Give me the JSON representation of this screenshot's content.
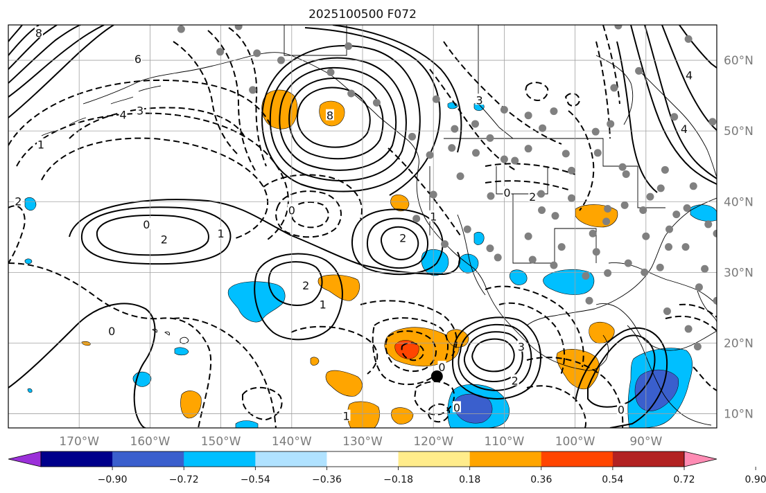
{
  "title": "2025100500 F072",
  "map": {
    "projection": "equirectangular",
    "lon_range": [
      -180,
      -80
    ],
    "lat_range": [
      8,
      65
    ],
    "lon_labels": [
      "170°W",
      "160°W",
      "150°W",
      "140°W",
      "130°W",
      "120°W",
      "110°W",
      "100°W",
      "90°W"
    ],
    "lat_labels": [
      "60°N",
      "50°N",
      "40°N",
      "30°N",
      "20°N",
      "10°N"
    ],
    "grid": true,
    "marker": {
      "lon": -119.5,
      "lat": 15.3,
      "color": "#000000"
    },
    "colors": {
      "positive_contour": "#000000",
      "negative_contour": "#000000",
      "station_marker": "#808080",
      "gridline": "#a0a0a0"
    }
  },
  "colorbar": {
    "ticks": [
      "−0.90",
      "−0.72",
      "−0.54",
      "−0.36",
      "−0.18",
      "0.18",
      "0.36",
      "0.54",
      "0.72",
      "0.90"
    ],
    "colors": [
      "#9b30d9",
      "#00008b",
      "#3a5fcd",
      "#00bfff",
      "#b0e2ff",
      "#ffffff",
      "#ffec8b",
      "#ffa500",
      "#ff4500",
      "#b22222",
      "#ff8cb4"
    ]
  },
  "contour_labels": [
    {
      "text": "0",
      "lon": -160.5,
      "lat": 36.7
    },
    {
      "text": "2",
      "lon": -158,
      "lat": 34.6
    },
    {
      "text": "1",
      "lon": -150,
      "lat": 35.4
    },
    {
      "text": "2",
      "lon": -138,
      "lat": 28.1
    },
    {
      "text": "1",
      "lon": -135.6,
      "lat": 25.4
    },
    {
      "text": "0",
      "lon": -140,
      "lat": 38.7
    },
    {
      "text": "2",
      "lon": -124.3,
      "lat": 34.8
    },
    {
      "text": "1",
      "lon": -120,
      "lat": 37.8
    },
    {
      "text": "8",
      "lon": -134.6,
      "lat": 52.1
    },
    {
      "text": "3",
      "lon": -107.6,
      "lat": 19.4
    },
    {
      "text": "2",
      "lon": -108.5,
      "lat": 14.6
    },
    {
      "text": "0",
      "lon": -118.8,
      "lat": 16.5
    },
    {
      "text": "0",
      "lon": -116.7,
      "lat": 10.8
    },
    {
      "text": "0",
      "lon": -93.5,
      "lat": 10.5
    },
    {
      "text": "0",
      "lon": -165.4,
      "lat": 21.6
    },
    {
      "text": "2",
      "lon": -106,
      "lat": 40.6
    },
    {
      "text": "0",
      "lon": -109.6,
      "lat": 41.2
    },
    {
      "text": "4",
      "lon": -83.9,
      "lat": 57.8
    },
    {
      "text": "4",
      "lon": -163.8,
      "lat": 52.2
    },
    {
      "text": "6",
      "lon": -161.7,
      "lat": 60.1
    },
    {
      "text": "8",
      "lon": -175.7,
      "lat": 63.8
    },
    {
      "text": "3",
      "lon": -161.4,
      "lat": 52.8
    },
    {
      "text": "1",
      "lon": -175.4,
      "lat": 48.0
    },
    {
      "text": "3",
      "lon": -113.5,
      "lat": 54.3
    },
    {
      "text": "4",
      "lon": -84.6,
      "lat": 50.2
    },
    {
      "text": "1",
      "lon": -132.3,
      "lat": 9.6
    },
    {
      "text": "2",
      "lon": -178.6,
      "lat": 40.0
    }
  ],
  "stations": [
    [
      -155.6,
      64.4
    ],
    [
      -150.1,
      61.2
    ],
    [
      -147.5,
      64.8
    ],
    [
      -144.9,
      61.0
    ],
    [
      -145.5,
      55.8
    ],
    [
      -141.5,
      60.0
    ],
    [
      -131.6,
      55.3
    ],
    [
      -134.5,
      58.3
    ],
    [
      -132.0,
      62.0
    ],
    [
      -128.0,
      54.0
    ],
    [
      -123.0,
      49.2
    ],
    [
      -119.6,
      54.5
    ],
    [
      -117.0,
      50.3
    ],
    [
      -114.1,
      51.0
    ],
    [
      -110.0,
      53.0
    ],
    [
      -106.6,
      52.2
    ],
    [
      -104.6,
      50.4
    ],
    [
      -103.0,
      52.8
    ],
    [
      -97.1,
      49.9
    ],
    [
      -95.0,
      51.0
    ],
    [
      -94.5,
      56.1
    ],
    [
      -91.0,
      58.5
    ],
    [
      -84.0,
      63.0
    ],
    [
      -93.9,
      64.9
    ],
    [
      -86.0,
      52.0
    ],
    [
      -80.6,
      51.3
    ],
    [
      -120.5,
      46.6
    ],
    [
      -117.4,
      47.6
    ],
    [
      -114.0,
      46.9
    ],
    [
      -110.0,
      46.0
    ],
    [
      -106.6,
      47.5
    ],
    [
      -101.3,
      46.8
    ],
    [
      -96.8,
      46.9
    ],
    [
      -93.3,
      44.9
    ],
    [
      -100.5,
      44.4
    ],
    [
      -104.8,
      41.1
    ],
    [
      -111.9,
      40.8
    ],
    [
      -116.2,
      43.6
    ],
    [
      -120.0,
      41.0
    ],
    [
      -122.4,
      37.6
    ],
    [
      -118.4,
      34.0
    ],
    [
      -115.2,
      36.1
    ],
    [
      -112.0,
      33.4
    ],
    [
      -106.6,
      35.1
    ],
    [
      -104.7,
      38.8
    ],
    [
      -97.5,
      35.5
    ],
    [
      -95.4,
      39.0
    ],
    [
      -97.0,
      32.9
    ],
    [
      -98.5,
      29.5
    ],
    [
      -95.4,
      29.9
    ],
    [
      -92.5,
      31.3
    ],
    [
      -90.2,
      30.0
    ],
    [
      -88.0,
      30.7
    ],
    [
      -86.8,
      33.6
    ],
    [
      -84.4,
      33.6
    ],
    [
      -82.5,
      27.9
    ],
    [
      -81.7,
      30.5
    ],
    [
      -80.0,
      26.0
    ],
    [
      -90.0,
      35.1
    ],
    [
      -86.7,
      36.1
    ],
    [
      -84.2,
      39.1
    ],
    [
      -87.9,
      41.9
    ],
    [
      -90.4,
      38.8
    ],
    [
      -92.8,
      43.9
    ],
    [
      -83.3,
      42.2
    ],
    [
      -87.3,
      44.5
    ],
    [
      -89.4,
      40.7
    ],
    [
      -85.7,
      38.2
    ],
    [
      -81.2,
      36.8
    ],
    [
      -80.0,
      35.5
    ],
    [
      -108.5,
      45.8
    ],
    [
      -112.0,
      49.0
    ],
    [
      -100.5,
      40.5
    ],
    [
      -102.8,
      38.0
    ],
    [
      -106.0,
      31.8
    ],
    [
      -101.9,
      33.6
    ],
    [
      -110.9,
      32.1
    ],
    [
      -84.0,
      22.0
    ],
    [
      -82.7,
      19.5
    ],
    [
      -87.0,
      24.5
    ],
    [
      -93.0,
      39.5
    ],
    [
      -95.6,
      37.2
    ],
    [
      -98.0,
      26.0
    ],
    [
      -103.0,
      31.0
    ]
  ]
}
